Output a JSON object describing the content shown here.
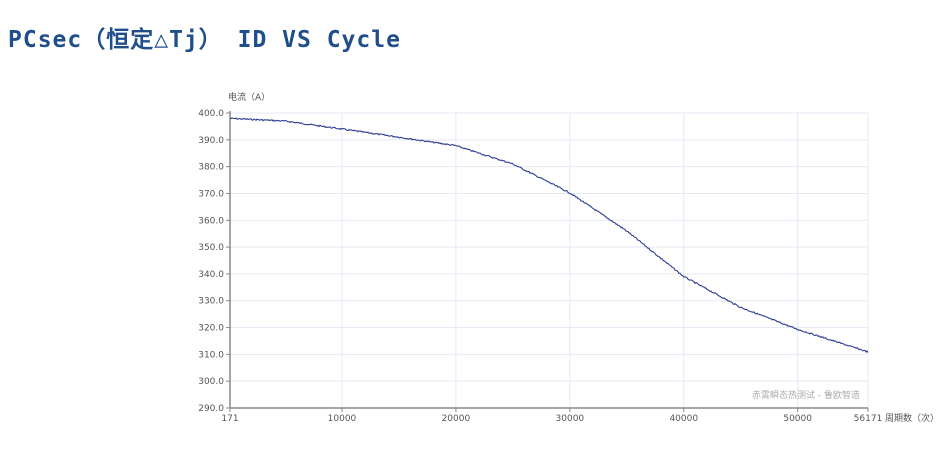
{
  "page_title": "PCsec（恒定△Tj） ID VS Cycle",
  "chart_data": {
    "type": "line",
    "title": "",
    "ylabel": "电流（A）",
    "xlabel": "周期数（次）",
    "watermark": "赤霄瞬态热测试 - 鲁欧智造",
    "xlim": [
      171,
      56171
    ],
    "ylim": [
      290,
      400
    ],
    "x_ticks": [
      "171",
      "10000",
      "20000",
      "30000",
      "40000",
      "50000",
      "56171"
    ],
    "y_ticks": [
      "400.0",
      "390.0",
      "380.0",
      "370.0",
      "360.0",
      "350.0",
      "340.0",
      "330.0",
      "320.0",
      "310.0",
      "300.0",
      "290.0"
    ],
    "grid": true,
    "line_color": "#2e3f94",
    "series": [
      {
        "x": [
          171,
          5000,
          10000,
          15000,
          20000,
          25000,
          30000,
          35000,
          40000,
          45000,
          50000,
          55000,
          56171
        ],
        "y": [
          398,
          397,
          394,
          391,
          387.8,
          381,
          370.2,
          356,
          339,
          327.5,
          319.3,
          312.5,
          310.9
        ]
      }
    ]
  }
}
